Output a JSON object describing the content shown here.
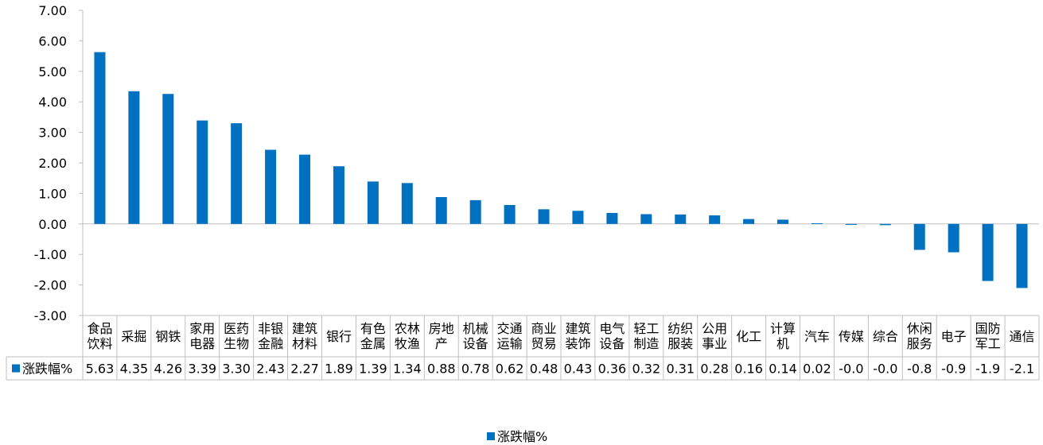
{
  "chart_data": {
    "type": "bar",
    "title": "",
    "xlabel": "",
    "ylabel": "",
    "ylim": [
      -3.0,
      7.0
    ],
    "yticks": [
      "7.00",
      "6.00",
      "5.00",
      "4.00",
      "3.00",
      "2.00",
      "1.00",
      "0.00",
      "-1.00",
      "-2.00",
      "-3.00"
    ],
    "grid": false,
    "legend_position": "bottom",
    "color": "#0070C0",
    "categories": [
      [
        "食品",
        "饮料"
      ],
      [
        "采掘"
      ],
      [
        "钢铁"
      ],
      [
        "家用",
        "电器"
      ],
      [
        "医药",
        "生物"
      ],
      [
        "非银",
        "金融"
      ],
      [
        "建筑",
        "材料"
      ],
      [
        "银行"
      ],
      [
        "有色",
        "金属"
      ],
      [
        "农林",
        "牧渔"
      ],
      [
        "房地",
        "产"
      ],
      [
        "机械",
        "设备"
      ],
      [
        "交通",
        "运输"
      ],
      [
        "商业",
        "贸易"
      ],
      [
        "建筑",
        "装饰"
      ],
      [
        "电气",
        "设备"
      ],
      [
        "轻工",
        "制造"
      ],
      [
        "纺织",
        "服装"
      ],
      [
        "公用",
        "事业"
      ],
      [
        "化工"
      ],
      [
        "计算",
        "机"
      ],
      [
        "汽车"
      ],
      [
        "传媒"
      ],
      [
        "综合"
      ],
      [
        "休闲",
        "服务"
      ],
      [
        "电子"
      ],
      [
        "国防",
        "军工"
      ],
      [
        "通信"
      ]
    ],
    "series": [
      {
        "name": "涨跌幅%",
        "values": [
          5.63,
          4.35,
          4.26,
          3.39,
          3.3,
          2.43,
          2.27,
          1.89,
          1.39,
          1.34,
          0.88,
          0.78,
          0.62,
          0.48,
          0.43,
          0.36,
          0.32,
          0.31,
          0.28,
          0.16,
          0.14,
          0.02,
          -0.03,
          -0.04,
          -0.85,
          -0.93,
          -1.87,
          -2.1
        ],
        "table_labels": [
          "5.63",
          "4.35",
          "4.26",
          "3.39",
          "3.30",
          "2.43",
          "2.27",
          "1.89",
          "1.39",
          "1.34",
          "0.88",
          "0.78",
          "0.62",
          "0.48",
          "0.43",
          "0.36",
          "0.32",
          "0.31",
          "0.28",
          "0.16",
          "0.14",
          "0.02",
          "-0.0",
          "-0.0",
          "-0.8",
          "-0.9",
          "-1.9",
          "-2.1"
        ]
      }
    ]
  }
}
